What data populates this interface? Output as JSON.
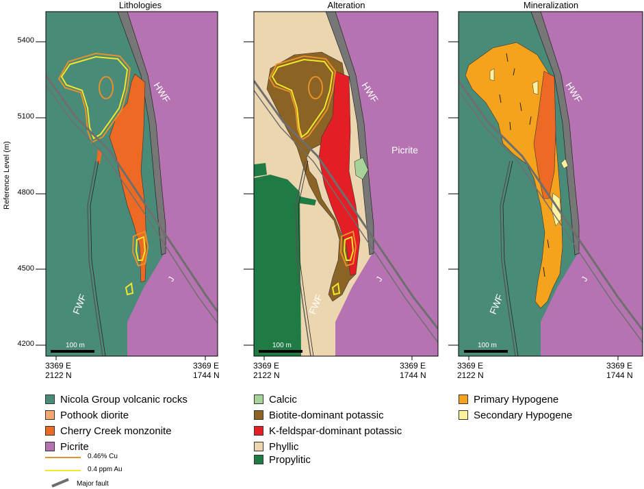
{
  "panels": [
    {
      "title": "Lithologies"
    },
    {
      "title": "Alteration"
    },
    {
      "title": "Mineralization"
    }
  ],
  "axis": {
    "ylabel": "Reference Level (m)",
    "ticks": [
      "5400",
      "5100",
      "4800",
      "4500",
      "4200"
    ]
  },
  "coords": {
    "left_line1": "3369 E",
    "left_line2": "2122 N",
    "right_line1": "3369 E",
    "right_line2": "1744 N"
  },
  "map_labels": {
    "hwf": "HWF",
    "fwf": "FWF",
    "j": "J",
    "picrite": "Picrite",
    "scale": "100 m"
  },
  "legend": {
    "lithologies": [
      {
        "label": "Nicola Group volcanic rocks",
        "color": "#4a8a79"
      },
      {
        "label": "Pothook diorite",
        "color": "#f4a870"
      },
      {
        "label": "Cherry Creek monzonite",
        "color": "#ec6a23"
      },
      {
        "label": "Picrite",
        "color": "#b573b1"
      }
    ],
    "lines": [
      {
        "label": "0.46% Cu",
        "color": "#e8902a"
      },
      {
        "label": "0.4 ppm Au",
        "color": "#f2e82a"
      },
      {
        "label": "Major fault",
        "color": "#6e6e6e"
      }
    ],
    "alteration": [
      {
        "label": "Calcic",
        "color": "#a7d39a"
      },
      {
        "label": "Biotite-dominant potassic",
        "color": "#8b6325"
      },
      {
        "label": "K-feldspar-dominant potassic",
        "color": "#e31e24"
      },
      {
        "label": "Phyllic",
        "color": "#ecd6b0"
      },
      {
        "label": "Propylitic",
        "color": "#1f7a43"
      }
    ],
    "mineralization": [
      {
        "label": "Primary Hypogene",
        "color": "#f5a21c"
      },
      {
        "label": "Secondary Hypogene",
        "color": "#fdf2a0"
      }
    ]
  }
}
